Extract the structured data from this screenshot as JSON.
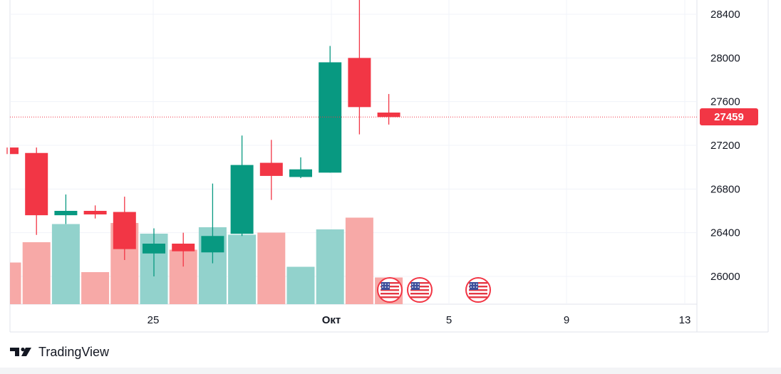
{
  "brand": {
    "name": "TradingView"
  },
  "colors": {
    "up": "#089981",
    "down": "#f23645",
    "vol_up": "#92d2cc",
    "vol_down": "#f7a9a7",
    "grid": "#f0f3fa",
    "price_line": "#f23645"
  },
  "event_markers": {
    "icon": "us-flag-icon",
    "count": 3
  },
  "chart_data": {
    "type": "candlestick",
    "title": "",
    "ylim": [
      25740,
      28640
    ],
    "y_ticks": [
      26000,
      26400,
      26800,
      27200,
      27600,
      28000,
      28400
    ],
    "x_tick_labels": [
      "25",
      "Окт",
      "5",
      "9",
      "13"
    ],
    "last_price": 27459,
    "candles": [
      {
        "open": 27180,
        "high": 27180,
        "low": 27120,
        "close": 27120,
        "dir": "down",
        "volume": 390
      },
      {
        "open": 27130,
        "high": 27180,
        "low": 26380,
        "close": 26560,
        "dir": "down",
        "volume": 580
      },
      {
        "open": 26560,
        "high": 26750,
        "low": 26480,
        "close": 26600,
        "dir": "up",
        "volume": 750
      },
      {
        "open": 26600,
        "high": 26650,
        "low": 26530,
        "close": 26570,
        "dir": "down",
        "volume": 300
      },
      {
        "open": 26590,
        "high": 26730,
        "low": 26150,
        "close": 26250,
        "dir": "down",
        "volume": 760
      },
      {
        "open": 26210,
        "high": 26440,
        "low": 26000,
        "close": 26300,
        "dir": "up",
        "volume": 660
      },
      {
        "open": 26300,
        "high": 26400,
        "low": 26090,
        "close": 26230,
        "dir": "down",
        "volume": 510
      },
      {
        "open": 26220,
        "high": 26850,
        "low": 26120,
        "close": 26370,
        "dir": "up",
        "volume": 720
      },
      {
        "open": 26390,
        "high": 27290,
        "low": 26370,
        "close": 27020,
        "dir": "up",
        "volume": 650
      },
      {
        "open": 27040,
        "high": 27250,
        "low": 26700,
        "close": 26920,
        "dir": "down",
        "volume": 670
      },
      {
        "open": 26910,
        "high": 27090,
        "low": 26900,
        "close": 26980,
        "dir": "up",
        "volume": 350
      },
      {
        "open": 26950,
        "high": 28110,
        "low": 26950,
        "close": 27960,
        "dir": "up",
        "volume": 700
      },
      {
        "open": 28000,
        "high": 28620,
        "low": 27300,
        "close": 27550,
        "dir": "down",
        "volume": 810
      },
      {
        "open": 27500,
        "high": 27670,
        "low": 27390,
        "close": 27459,
        "dir": "down",
        "volume": 250
      }
    ]
  }
}
